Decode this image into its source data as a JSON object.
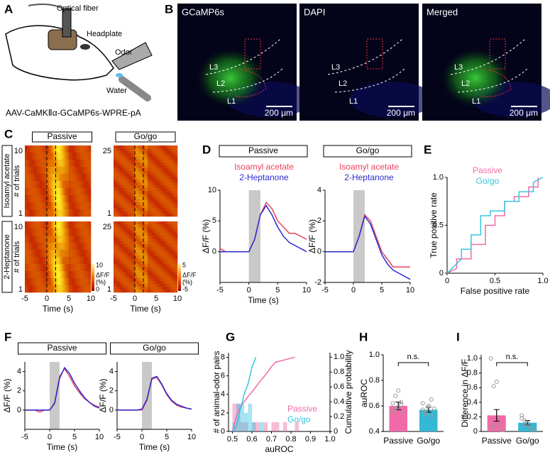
{
  "panel_labels": [
    "A",
    "B",
    "C",
    "D",
    "E",
    "F",
    "G",
    "H",
    "I"
  ],
  "panel_a": {
    "labels": [
      "Optical fiber",
      "Headplate",
      "Odor",
      "Water"
    ],
    "caption": "AAV-CaMKⅡα-GCaMP6s-WPRE-pA"
  },
  "panel_b": {
    "images": [
      {
        "title": "GCaMP6s",
        "layers": [
          "L3",
          "L2",
          "L1"
        ],
        "scale": "200 μm"
      },
      {
        "title": "DAPI",
        "layers": [
          "L3",
          "L2",
          "L1"
        ],
        "scale": "200 μm"
      },
      {
        "title": "Merged",
        "layers": [
          "L3",
          "L2",
          "L1"
        ],
        "scale": "200 μm"
      }
    ]
  },
  "panel_c": {
    "conditions": [
      "Passive",
      "Go/go"
    ],
    "odors": [
      "Isoamyl acetate",
      "2-Heptanone"
    ],
    "ylabel": "# of trials",
    "xlabel": "Time (s)",
    "xlim": [
      -5,
      10
    ],
    "xticks": [
      -5,
      0,
      5,
      10
    ],
    "trial_ticks": [
      [
        10,
        1
      ],
      [
        25,
        1
      ]
    ],
    "colorbars": [
      {
        "ticks": [
          10,
          0
        ],
        "label": "ΔF/F",
        "unit": "(%)"
      },
      {
        "ticks": [
          5,
          -5
        ],
        "label": "ΔF/F",
        "unit": "(%)"
      }
    ]
  },
  "chart_data": [
    {
      "type": "line",
      "title": "Passive",
      "ylabel": "ΔF/F (%)",
      "xlabel": "Time (s)",
      "shade": [
        0,
        2
      ],
      "x": [
        -5,
        -4,
        -3,
        -2,
        -1,
        0,
        1,
        2,
        3,
        4,
        5,
        6,
        7,
        8,
        9,
        10
      ],
      "series": [
        {
          "name": "Isoamyl acetate",
          "color": "#e8435a",
          "values": [
            0.5,
            0,
            0,
            0,
            0,
            0,
            2,
            6,
            8,
            7,
            5,
            4,
            3,
            3,
            2.5,
            2
          ]
        },
        {
          "name": "2-Heptanone",
          "color": "#2b2bd0",
          "values": [
            0,
            0,
            0,
            0,
            0,
            0,
            2,
            6,
            7.5,
            6,
            4,
            2.5,
            1.5,
            1,
            0.5,
            0
          ]
        }
      ],
      "xlim": [
        -5,
        10
      ],
      "xticks": [
        -5,
        0,
        5,
        10
      ],
      "ylim": [
        -5,
        10
      ],
      "yticks": [
        0,
        5,
        10
      ]
    },
    {
      "type": "line",
      "title": "Go/go",
      "ylabel": "ΔF/F (%)",
      "shade": [
        0,
        2
      ],
      "x": [
        -5,
        -4,
        -3,
        -2,
        -1,
        0,
        1,
        2,
        3,
        4,
        5,
        6,
        7,
        8,
        9,
        10
      ],
      "series": [
        {
          "name": "Isoamyl acetate",
          "color": "#e8435a",
          "values": [
            0,
            0,
            0,
            0,
            0,
            0,
            1,
            2.4,
            2,
            1,
            0,
            -0.5,
            -1,
            -1,
            -1,
            -1
          ]
        },
        {
          "name": "2-Heptanone",
          "color": "#2b2bd0",
          "values": [
            0,
            0,
            0,
            0,
            0,
            0,
            1,
            2.3,
            1.8,
            0.8,
            -0.2,
            -0.8,
            -1.2,
            -1.4,
            -1.6,
            -1.8
          ]
        }
      ],
      "xlim": [
        -5,
        10
      ],
      "xticks": [
        -5,
        0,
        5,
        10
      ],
      "ylim": [
        -2,
        4
      ],
      "yticks": [
        -2,
        0,
        2,
        4
      ]
    },
    {
      "type": "line",
      "ylabel": "True positive rate",
      "xlabel": "False positive rate",
      "series": [
        {
          "name": "Passive",
          "color": "#f06aa8",
          "x": [
            0,
            0.1,
            0.1,
            0.25,
            0.25,
            0.4,
            0.4,
            0.5,
            0.5,
            0.6,
            0.6,
            0.7,
            0.7,
            0.85,
            0.85,
            0.95,
            0.95
          ],
          "values": [
            0,
            0.05,
            0.15,
            0.15,
            0.3,
            0.3,
            0.5,
            0.5,
            0.6,
            0.6,
            0.75,
            0.75,
            0.8,
            0.8,
            0.9,
            0.9,
            1
          ]
        },
        {
          "name": "Go/go",
          "color": "#35c6e0",
          "x": [
            0,
            0.05,
            0.15,
            0.15,
            0.25,
            0.25,
            0.35,
            0.35,
            0.45,
            0.45,
            0.6,
            0.6,
            0.75,
            0.75,
            0.9,
            0.9,
            1
          ],
          "values": [
            0,
            0.05,
            0.15,
            0.25,
            0.25,
            0.4,
            0.4,
            0.6,
            0.6,
            0.65,
            0.65,
            0.75,
            0.75,
            0.85,
            0.85,
            0.95,
            1
          ]
        }
      ],
      "xlim": [
        0,
        1
      ],
      "xticks": [
        0,
        0.5,
        {
          "value": 1,
          "label": "1.0"
        }
      ],
      "ylim": [
        0,
        1
      ],
      "yticks": [
        0,
        0.5,
        {
          "value": 1,
          "label": "1.0"
        }
      ]
    },
    {
      "type": "line",
      "title": "Passive",
      "ylabel": "ΔF/F (%)",
      "xlabel": "Time (s)",
      "shade": [
        0,
        2
      ],
      "x": [
        -5,
        -4,
        -3,
        -2,
        -1,
        0,
        1,
        2,
        3,
        4,
        5,
        6,
        7,
        8,
        9,
        10
      ],
      "series": [
        {
          "color": "#e8435a",
          "values": [
            0,
            0,
            0,
            -0.2,
            0,
            0,
            0.8,
            3.5,
            4.3,
            3.5,
            2.5,
            1.8,
            1.2,
            0.8,
            0.5,
            0.3
          ]
        },
        {
          "color": "#2b2bd0",
          "values": [
            0,
            0,
            0,
            0,
            0,
            0,
            0.7,
            3.3,
            4.4,
            3.8,
            2.8,
            2,
            1.3,
            0.8,
            0.4,
            0.2
          ]
        }
      ],
      "xlim": [
        -5,
        10
      ],
      "xticks": [
        -5,
        0,
        5,
        10
      ],
      "ylim": [
        -2,
        5
      ],
      "yticks": [
        0,
        2,
        4
      ]
    },
    {
      "type": "line",
      "title": "Go/go",
      "ylabel": "ΔF/F (%)",
      "xlabel": "Time (s)",
      "shade": [
        0,
        2
      ],
      "x": [
        -5,
        -4,
        -3,
        -2,
        -1,
        0,
        1,
        2,
        3,
        4,
        5,
        6,
        7,
        8,
        9,
        10
      ],
      "series": [
        {
          "color": "#e8435a",
          "values": [
            0,
            0,
            0,
            0,
            0,
            0,
            1,
            3.2,
            3.4,
            2.6,
            1.6,
            0.9,
            0.5,
            0.3,
            0.2,
            0.1
          ]
        },
        {
          "color": "#2b2bd0",
          "values": [
            0,
            0,
            0,
            0,
            0,
            0.1,
            1.1,
            3.3,
            3.5,
            2.7,
            1.7,
            1,
            0.6,
            0.4,
            0.2,
            0.1
          ]
        }
      ],
      "xlim": [
        -5,
        10
      ],
      "xticks": [
        -5,
        0,
        5,
        10
      ],
      "ylim": [
        -2,
        5
      ],
      "yticks": [
        0,
        2,
        4
      ]
    },
    {
      "type": "histogram",
      "ylabel": "# of animal-odor pairs",
      "y2label": "Cumulative probability",
      "xlabel": "auROC",
      "bins": [
        0.5,
        0.52,
        0.54,
        0.56,
        0.58,
        0.6,
        0.62,
        0.64,
        0.66,
        0.68,
        0.7,
        0.72,
        0.74,
        0.76,
        0.78,
        0.8,
        0.82,
        0.84
      ],
      "series": [
        {
          "name": "Passive",
          "color": "#f06aa8",
          "values": [
            3,
            3,
            1,
            1,
            0,
            1,
            1,
            0,
            1,
            0,
            1,
            1,
            0,
            1,
            0,
            0,
            1
          ]
        },
        {
          "name": "Go/go",
          "color": "#35c6e0",
          "values": [
            1,
            3,
            3,
            2,
            3,
            1,
            0,
            1,
            0,
            0,
            0,
            0,
            0,
            0,
            0,
            0,
            0
          ]
        }
      ],
      "cumulative": [
        {
          "color": "#f06aa8",
          "axis": "y2",
          "x": [
            0.5,
            0.52,
            0.54,
            0.56,
            0.58,
            0.6,
            0.62,
            0.64,
            0.66,
            0.68,
            0.7,
            0.72,
            0.82
          ],
          "values": [
            0,
            0.2,
            0.33,
            0.4,
            0.47,
            0.53,
            0.6,
            0.67,
            0.73,
            0.8,
            0.87,
            0.93,
            1
          ]
        },
        {
          "color": "#35c6e0",
          "axis": "y2",
          "x": [
            0.5,
            0.52,
            0.54,
            0.56,
            0.58,
            0.6,
            0.62
          ],
          "values": [
            0,
            0.07,
            0.29,
            0.5,
            0.64,
            0.86,
            1
          ]
        }
      ],
      "xlim": [
        0.48,
        1
      ],
      "xticks": [
        0.5,
        0.6,
        0.7,
        0.8,
        0.9,
        {
          "value": 1,
          "label": "1.0"
        }
      ],
      "ylim": [
        0,
        8.5
      ],
      "yticks": [
        0,
        2,
        4,
        6,
        8
      ],
      "y2lim": [
        0,
        1.06
      ],
      "y2ticks": [
        0,
        0.2,
        0.4,
        0.6,
        0.8,
        {
          "value": 1,
          "label": "1.0"
        }
      ]
    },
    {
      "type": "bar",
      "ylabel": "auROC",
      "annotation": "n.s.",
      "categories": [
        "Passive",
        "Go/go"
      ],
      "values": [
        0.6,
        0.57
      ],
      "errors": [
        0.03,
        0.02
      ],
      "colors": [
        "#f06aa8",
        "#35b7d6"
      ],
      "points": [
        [
          0.62,
          0.58,
          0.59,
          0.63,
          0.55,
          0.56,
          0.68,
          0.72,
          0.61
        ],
        [
          0.57,
          0.55,
          0.6,
          0.52,
          0.58,
          0.62,
          0.54,
          0.59,
          0.65
        ]
      ],
      "ylim": [
        0.4,
        1
      ],
      "yticks": [
        0.4,
        0.6,
        0.8,
        {
          "value": 1,
          "label": "1.0"
        }
      ]
    },
    {
      "type": "bar",
      "ylabel": "Difference in ΔF/F",
      "annotation": "n.s.",
      "categories": [
        "Passive",
        "Go/go"
      ],
      "values": [
        0.22,
        0.12
      ],
      "errors": [
        0.08,
        0.03
      ],
      "colors": [
        "#f06aa8",
        "#35b7d6"
      ],
      "points": [
        [
          1,
          0.62,
          0.68,
          0.1,
          0.02,
          0.05,
          0.08
        ],
        [
          0.22,
          0.15,
          0.1,
          0.05,
          0.03,
          0.18,
          0.08,
          0.12
        ]
      ],
      "ylim": [
        0,
        1.05
      ],
      "yticks": [
        0,
        0.2,
        0.4,
        0.6,
        0.8,
        {
          "value": 1,
          "label": "1.0"
        }
      ]
    }
  ]
}
